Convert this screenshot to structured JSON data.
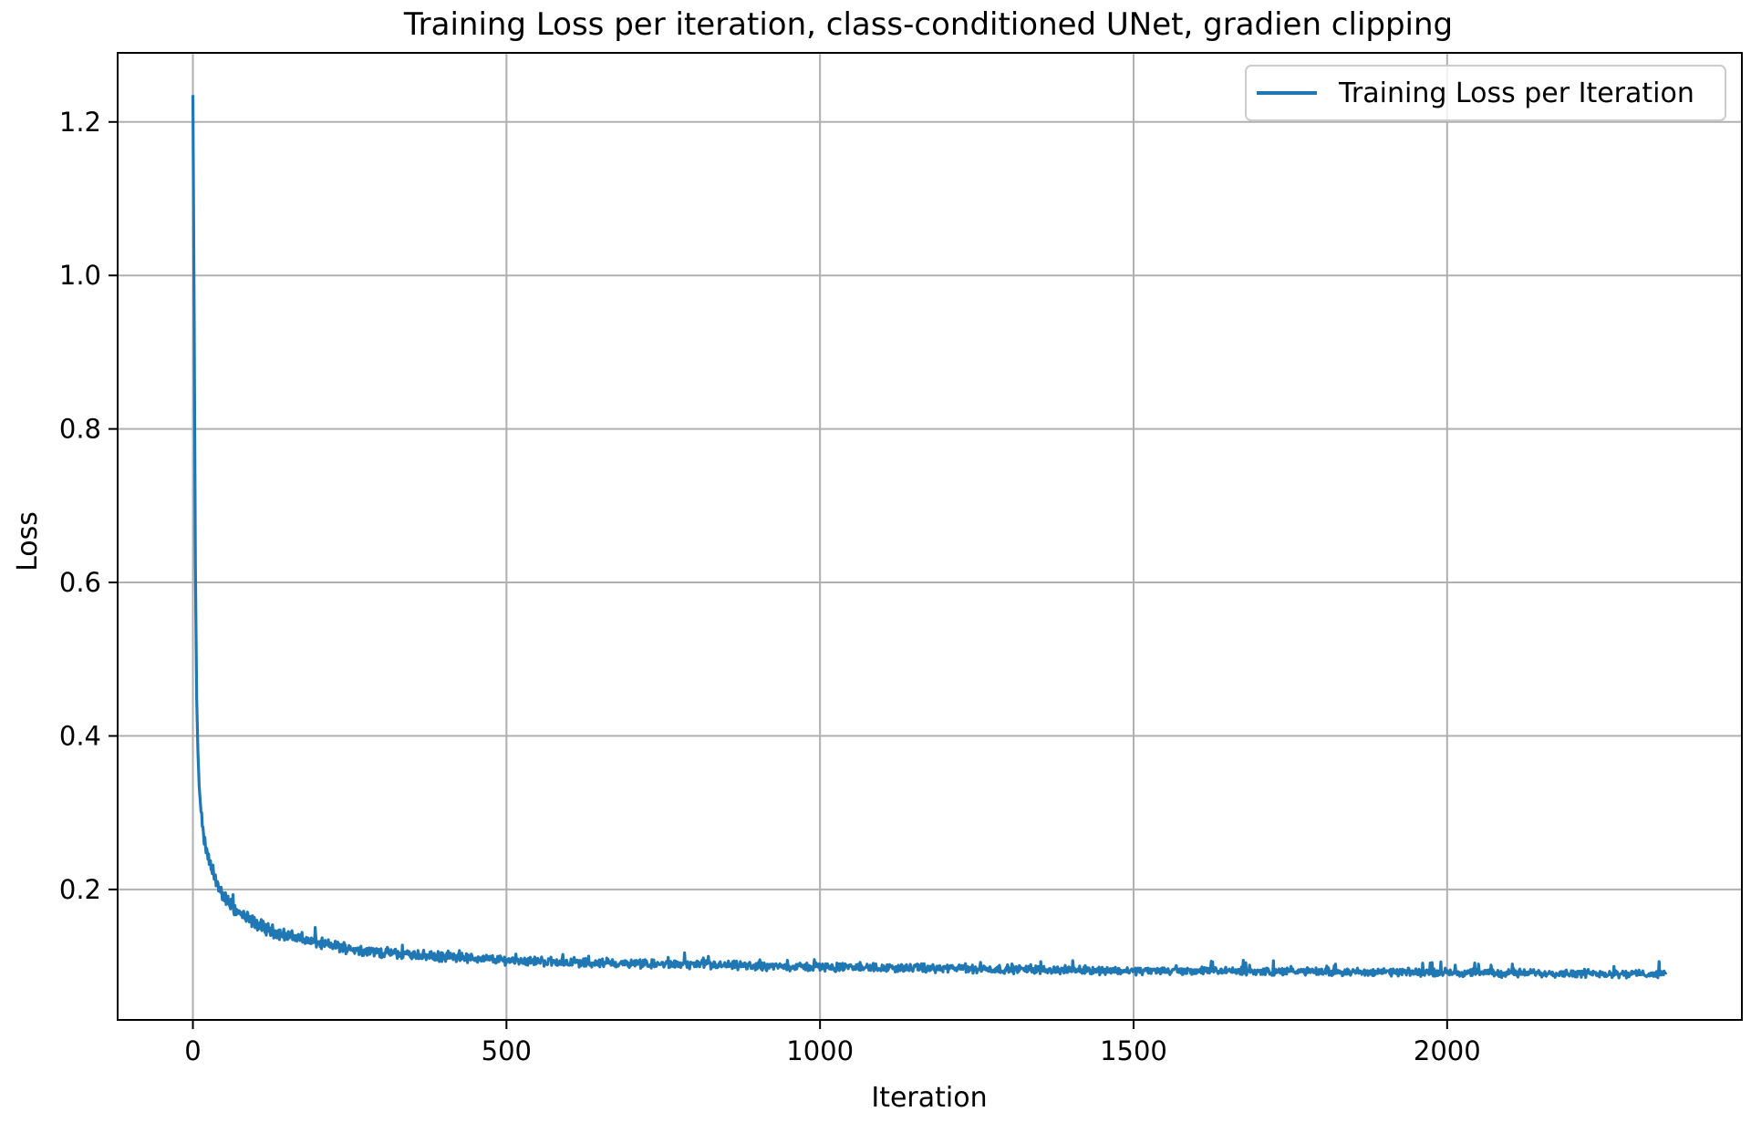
{
  "chart_data": {
    "type": "line",
    "title": "Training Loss per iteration, class-conditioned UNet, gradien clipping",
    "xlabel": "Iteration",
    "ylabel": "Loss",
    "xlim": [
      -120,
      2470
    ],
    "ylim": [
      0.03,
      1.29
    ],
    "xticks": [
      0,
      500,
      1000,
      1500,
      2000
    ],
    "xtick_labels": [
      "0",
      "500",
      "1000",
      "1500",
      "2000"
    ],
    "yticks": [
      0.2,
      0.4,
      0.6,
      0.8,
      1.0,
      1.2
    ],
    "ytick_labels": [
      "0.2",
      "0.4",
      "0.6",
      "0.8",
      "1.0",
      "1.2"
    ],
    "grid": true,
    "legend_position": "top-right",
    "series": [
      {
        "name": "Training Loss per Iteration",
        "color": "#1f77b4",
        "x": [
          0,
          2,
          4,
          6,
          8,
          10,
          13,
          16,
          20,
          25,
          30,
          40,
          50,
          60,
          75,
          90,
          110,
          130,
          150,
          175,
          200,
          230,
          260,
          300,
          350,
          400,
          450,
          500,
          600,
          700,
          800,
          900,
          1000,
          1100,
          1200,
          1300,
          1400,
          1500,
          1600,
          1700,
          1800,
          1900,
          2000,
          2100,
          2200,
          2300,
          2350
        ],
        "y": [
          1.235,
          0.95,
          0.62,
          0.45,
          0.38,
          0.335,
          0.3,
          0.275,
          0.255,
          0.24,
          0.225,
          0.205,
          0.19,
          0.18,
          0.168,
          0.16,
          0.152,
          0.145,
          0.14,
          0.135,
          0.13,
          0.126,
          0.122,
          0.118,
          0.115,
          0.112,
          0.11,
          0.108,
          0.105,
          0.103,
          0.102,
          0.1,
          0.099,
          0.098,
          0.097,
          0.096,
          0.095,
          0.094,
          0.094,
          0.093,
          0.093,
          0.092,
          0.092,
          0.091,
          0.091,
          0.09,
          0.09
        ]
      }
    ]
  }
}
